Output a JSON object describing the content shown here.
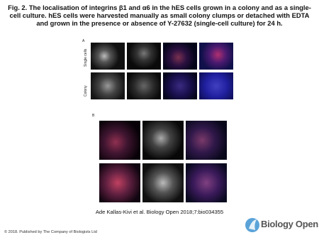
{
  "header": {
    "title": "Fig. 2. The localisation of integrins β1 and α6 in the hES cells grown in a colony and as a single-cell culture. hES cells were harvested manually as small colony clumps or detached with EDTA and grown in the presence or absence of Y-27632 (single-cell culture) for 24 h."
  },
  "figure": {
    "panels": [
      "A",
      "B"
    ],
    "row_labels": [
      "Single cells",
      "Colony"
    ]
  },
  "footer": {
    "citation": "Ade Kallas-Kivi et al. Biology Open 2018;7:bio034355",
    "copyright": "© 2018. Published by The Company of Biologists Ltd",
    "logo": "Biology Open"
  }
}
